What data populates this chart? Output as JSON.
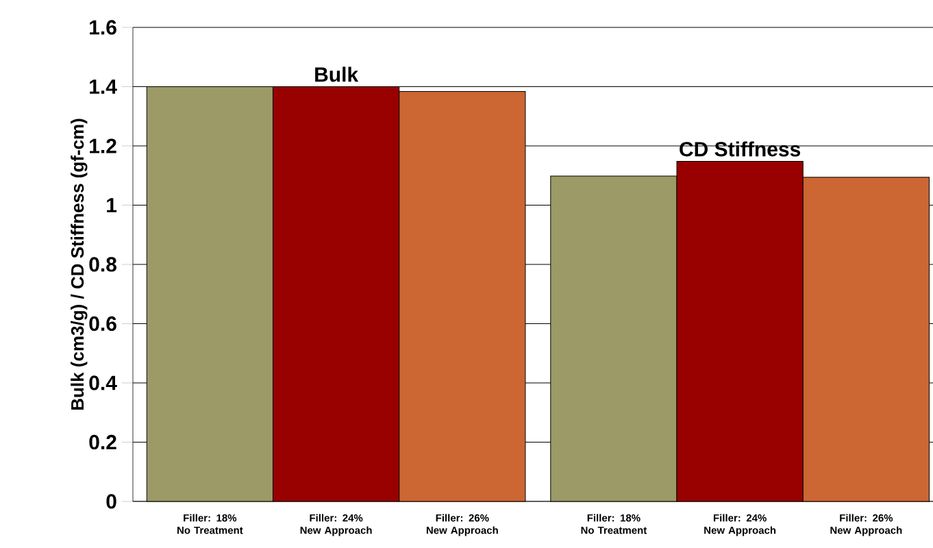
{
  "chart_data": {
    "type": "bar",
    "ylabel": "Bulk (cm3/g) / CD Stiffness (gf-cm)",
    "categories": [
      "Filler: 18% No Treatment",
      "Filler: 24% New Approach",
      "Filler: 26% New Approach",
      "Filler: 18% No Treatment",
      "Filler: 24% New Approach",
      "Filler: 26% New Approach"
    ],
    "values": [
      1.4,
      1.4,
      1.384,
      1.098,
      1.148,
      1.094
    ],
    "colors": [
      "#9c9a66",
      "#990000",
      "#cc6633",
      "#9c9a66",
      "#990000",
      "#cc6633"
    ],
    "ylim": [
      0,
      1.6
    ],
    "yticks": [
      0,
      0.2,
      0.4,
      0.6,
      0.8,
      1,
      1.2,
      1.4,
      1.6
    ],
    "grid": "y",
    "annotations": [
      "Bulk",
      "CD Stiffness"
    ]
  }
}
